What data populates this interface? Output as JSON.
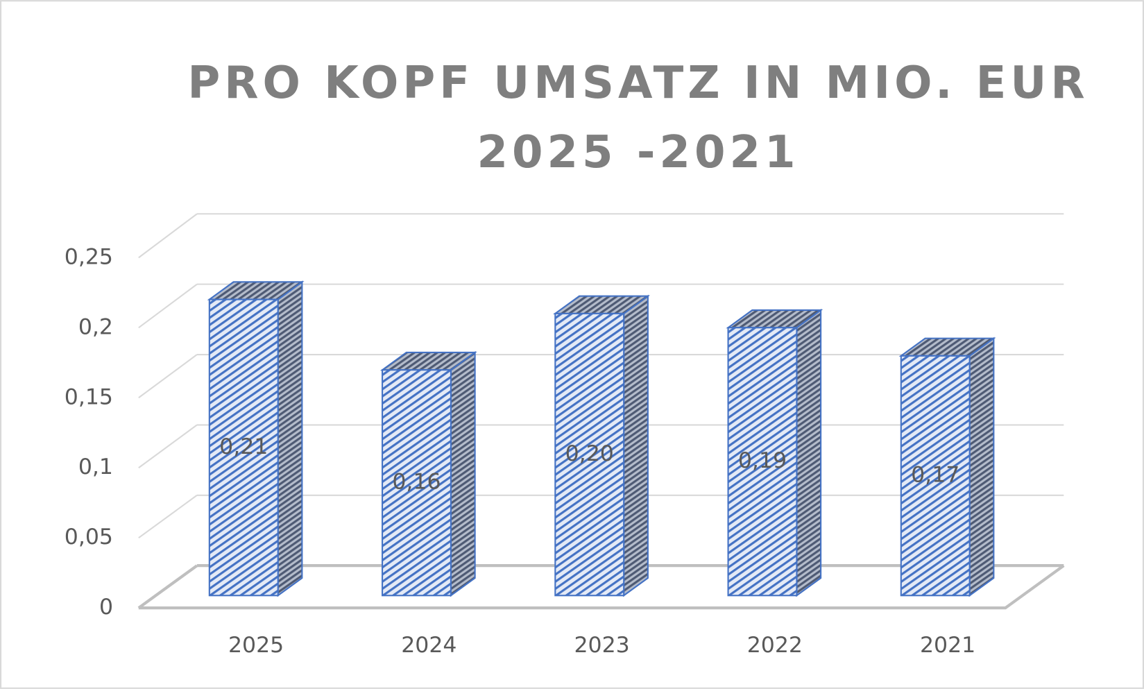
{
  "chart_data": {
    "type": "bar3d",
    "title": "PRO KOPF UMSATZ IN MIO. EUR 2025 -2021",
    "categories": [
      "2025",
      "2024",
      "2023",
      "2022",
      "2021"
    ],
    "values": [
      0.21,
      0.16,
      0.2,
      0.19,
      0.17
    ],
    "value_labels": [
      "0,21",
      "0,16",
      "0,20",
      "0,19",
      "0,17"
    ],
    "color": "#4472c4",
    "ylim": [
      0,
      0.25
    ],
    "yticks": [
      0,
      {
        "value": 0.05,
        "label": "0,05"
      },
      {
        "value": 0.1,
        "label": "0,1"
      },
      {
        "value": 0.15,
        "label": "0,15"
      },
      {
        "value": 0.2,
        "label": "0,2"
      },
      {
        "value": 0.25,
        "label": "0,25"
      }
    ],
    "grid": true
  }
}
